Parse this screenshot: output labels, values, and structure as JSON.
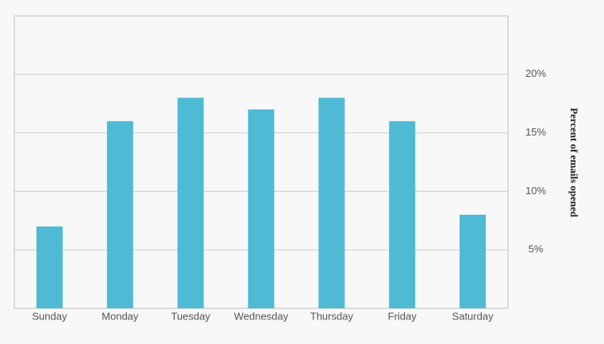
{
  "chart_data": {
    "type": "bar",
    "y_label": "Percent of emails opened",
    "categories": [
      "Sunday",
      "Monday",
      "Tuesday",
      "Wednesday",
      "Thursday",
      "Friday",
      "Saturday"
    ],
    "values": [
      7,
      16,
      18,
      17,
      18,
      16,
      8
    ],
    "color": "#4fbad4",
    "ylim": [
      0,
      25
    ],
    "yticks": [
      {
        "value": 5,
        "label": "5%"
      },
      {
        "value": 10,
        "label": "10%"
      },
      {
        "value": 15,
        "label": "15%"
      },
      {
        "value": 20,
        "label": "20%"
      }
    ],
    "grid": true
  }
}
